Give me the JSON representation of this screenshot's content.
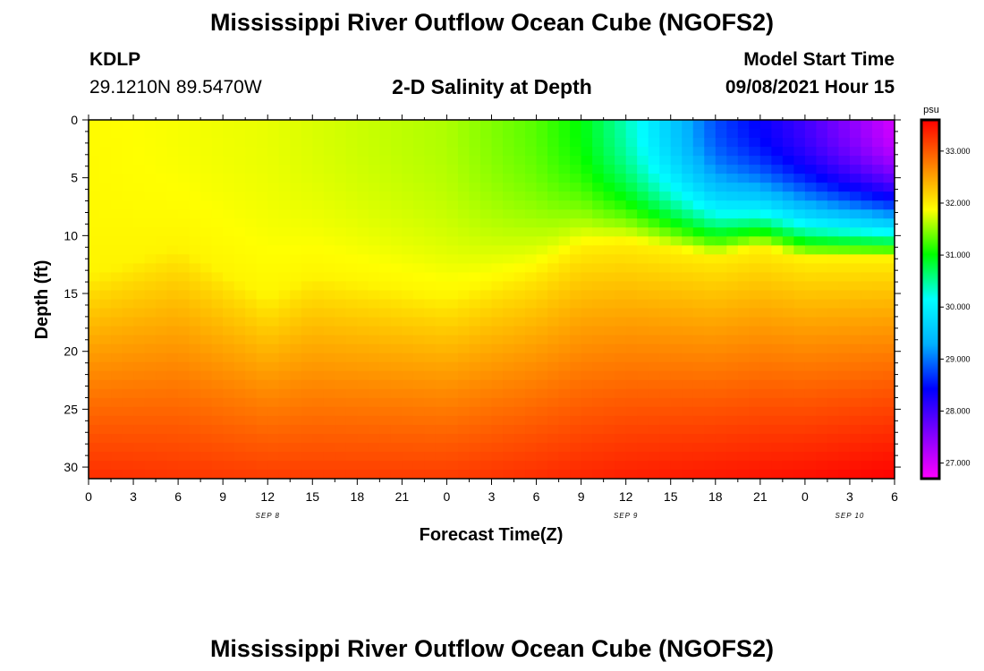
{
  "title": "Mississippi River Outflow Ocean Cube (NGOFS2)",
  "footer_title": "Mississippi River Outflow Ocean Cube (NGOFS2)",
  "station": {
    "id": "KDLP",
    "coords": "29.1210N  89.5470W"
  },
  "model": {
    "label": "Model Start Time",
    "start": "09/08/2021 Hour 15"
  },
  "chart_data": {
    "type": "heatmap",
    "title": "2-D Salinity at Depth",
    "xlabel": "Forecast Time(Z)",
    "ylabel": "Depth (ft)",
    "x_tick_labels": [
      "0",
      "3",
      "6",
      "9",
      "12",
      "15",
      "18",
      "21",
      "0",
      "3",
      "6",
      "9",
      "12",
      "15",
      "18",
      "21",
      "0",
      "3",
      "6"
    ],
    "x_range_hours": [
      0,
      54
    ],
    "date_labels": [
      {
        "text": "SEP 8",
        "hour": 12
      },
      {
        "text": "SEP 9",
        "hour": 36
      },
      {
        "text": "SEP 10",
        "hour": 51
      }
    ],
    "y_ticks": [
      0,
      5,
      10,
      15,
      20,
      25,
      30
    ],
    "ylim": [
      0,
      31
    ],
    "colorbar": {
      "unit": "psu",
      "range": [
        26.7,
        33.6
      ],
      "ticks": [
        "33.000",
        "32.000",
        "31.000",
        "30.000",
        "29.000",
        "28.000",
        "27.000"
      ],
      "colors": [
        "#ff00ff",
        "#8000ff",
        "#0000ff",
        "#00b0ff",
        "#00ffff",
        "#00ff00",
        "#ffff00",
        "#ff8000",
        "#ff0000"
      ]
    },
    "halocline_depth_ft": [
      {
        "hour": 0,
        "depth": 13.5
      },
      {
        "hour": 6,
        "depth": 11.0
      },
      {
        "hour": 12,
        "depth": 15.5
      },
      {
        "hour": 15,
        "depth": 13.5
      },
      {
        "hour": 21,
        "depth": 14.8
      },
      {
        "hour": 24,
        "depth": 15.5
      },
      {
        "hour": 30,
        "depth": 13.0
      },
      {
        "hour": 33,
        "depth": 10.8
      },
      {
        "hour": 36,
        "depth": 10.5
      },
      {
        "hour": 42,
        "depth": 11.8
      },
      {
        "hour": 45,
        "depth": 11.0
      },
      {
        "hour": 48,
        "depth": 12.0
      },
      {
        "hour": 54,
        "depth": 12.0
      }
    ],
    "surface_salinity_psu": [
      {
        "hour": 0,
        "value": 31.9
      },
      {
        "hour": 12,
        "value": 31.8
      },
      {
        "hour": 24,
        "value": 31.6
      },
      {
        "hour": 30,
        "value": 31.3
      },
      {
        "hour": 33,
        "value": 31.0
      },
      {
        "hour": 36,
        "value": 30.4
      },
      {
        "hour": 42,
        "value": 28.8
      },
      {
        "hour": 48,
        "value": 28.0
      },
      {
        "hour": 54,
        "value": 27.0
      }
    ],
    "bottom_salinity_psu": [
      {
        "hour": 0,
        "value": 33.3
      },
      {
        "hour": 12,
        "value": 33.2
      },
      {
        "hour": 24,
        "value": 33.2
      },
      {
        "hour": 36,
        "value": 33.4
      },
      {
        "hour": 48,
        "value": 33.5
      },
      {
        "hour": 54,
        "value": 33.6
      }
    ]
  }
}
